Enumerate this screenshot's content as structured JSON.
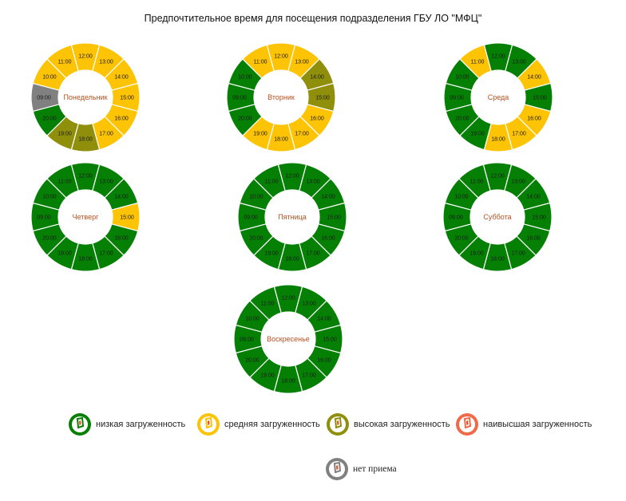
{
  "title": "Предпочтительное время для посещения подразделения ГБУ ЛО \"МФЦ\"",
  "colors": {
    "low": "#058005",
    "medium": "#fdc305",
    "high": "#8f8f0c",
    "highest": "#f06a4a",
    "closed": "#808080"
  },
  "legend": [
    {
      "key": "low",
      "label": "низкая загруженность",
      "icon": "mfc-logo-icon"
    },
    {
      "key": "medium",
      "label": "средняя загруженность",
      "icon": "mfc-logo-icon"
    },
    {
      "key": "high",
      "label": "высокая загруженность",
      "icon": "mfc-logo-icon"
    },
    {
      "key": "highest",
      "label": "наивысшая загруженность",
      "icon": "mfc-logo-icon"
    },
    {
      "key": "closed",
      "label": "нет приема",
      "icon": "mfc-logo-icon"
    }
  ],
  "chart_data": {
    "type": "pie",
    "variant": "donut",
    "hours": [
      "09:00",
      "10:00",
      "11:00",
      "12:00",
      "13:00",
      "14:00",
      "15:00",
      "16:00",
      "17:00",
      "18:00",
      "19:00",
      "20:00"
    ],
    "days": [
      {
        "name": "Понедельник",
        "load": [
          "closed",
          "medium",
          "medium",
          "medium",
          "medium",
          "medium",
          "medium",
          "medium",
          "medium",
          "high",
          "high",
          "low"
        ]
      },
      {
        "name": "Вторник",
        "load": [
          "low",
          "low",
          "medium",
          "medium",
          "medium",
          "high",
          "high",
          "medium",
          "medium",
          "medium",
          "medium",
          "low"
        ]
      },
      {
        "name": "Среда",
        "load": [
          "low",
          "low",
          "medium",
          "low",
          "low",
          "medium",
          "low",
          "medium",
          "medium",
          "medium",
          "low",
          "low"
        ]
      },
      {
        "name": "Четверг",
        "load": [
          "low",
          "low",
          "low",
          "low",
          "low",
          "low",
          "medium",
          "low",
          "low",
          "low",
          "low",
          "low"
        ]
      },
      {
        "name": "Пятница",
        "load": [
          "low",
          "low",
          "low",
          "low",
          "low",
          "low",
          "low",
          "low",
          "low",
          "low",
          "low",
          "low"
        ]
      },
      {
        "name": "Суббота",
        "load": [
          "low",
          "low",
          "low",
          "low",
          "low",
          "low",
          "low",
          "low",
          "low",
          "low",
          "low",
          "low"
        ]
      },
      {
        "name": "Воскресенье",
        "load": [
          "low",
          "low",
          "low",
          "low",
          "low",
          "low",
          "low",
          "low",
          "low",
          "low",
          "low",
          "low"
        ]
      }
    ]
  }
}
